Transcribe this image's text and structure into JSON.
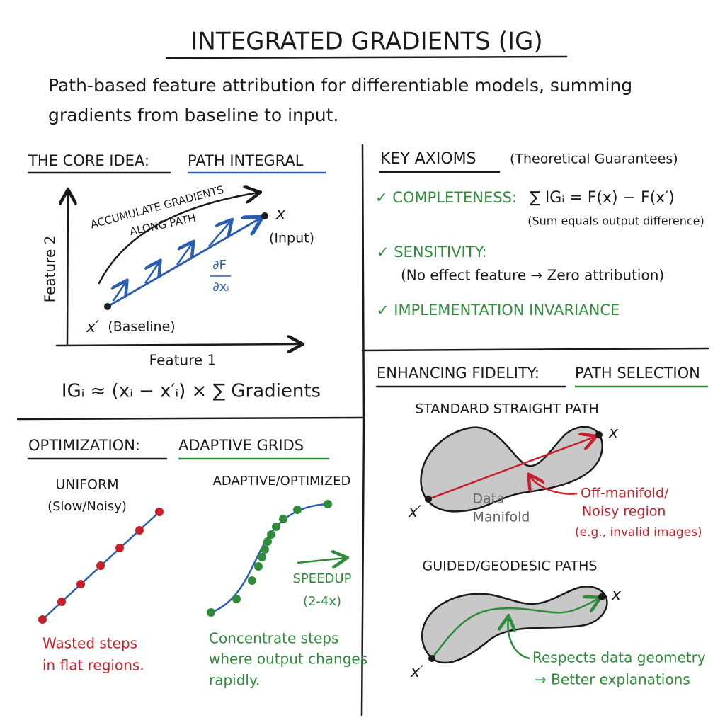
{
  "title": "INTEGRATED GRADIENTS (IG)",
  "subtitle_lines": [
    "Path-based feature attribution for differentiable models, summing",
    "gradients from baseline to input."
  ],
  "core_idea": {
    "heading": "THE CORE IDEA:",
    "heading_accent": "PATH INTEGRAL",
    "curve_label_lines": [
      "ACCUMULATE GRADIENTS",
      "ALONG PATH"
    ],
    "input_symbol": "x",
    "input_label": "(Input)",
    "gradient_numerator": "∂F",
    "gradient_denominator": "∂xᵢ",
    "baseline_symbol": "x′",
    "baseline_label": "(Baseline)",
    "y_axis_label": "Feature 2",
    "x_axis_label": "Feature 1",
    "formula": "IGᵢ ≈ (xᵢ − x′ᵢ) × ∑ Gradients"
  },
  "key_axioms": {
    "heading": "KEY AXIOMS",
    "heading_note": "(Theoretical Guarantees)",
    "items": [
      {
        "label": "✓ COMPLETENESS:",
        "formula": "∑ IGᵢ = F(x) − F(x′)",
        "note": "(Sum equals output difference)"
      },
      {
        "label": "✓ SENSITIVITY:",
        "note": "(No effect feature → Zero attribution)"
      },
      {
        "label": "✓ IMPLEMENTATION INVARIANCE"
      }
    ]
  },
  "optimization": {
    "heading": "OPTIMIZATION:",
    "heading_accent": "ADAPTIVE GRIDS",
    "uniform": {
      "label": "UNIFORM",
      "note": "(Slow/Noisy)",
      "caption_lines": [
        "Wasted steps",
        "in flat regions."
      ]
    },
    "adaptive": {
      "label": "ADAPTIVE/OPTIMIZED",
      "speedup_label": "SPEEDUP",
      "speedup_value": "(2-4x)",
      "caption_lines": [
        "Concentrate steps",
        "where output changes",
        "rapidly."
      ]
    }
  },
  "fidelity": {
    "heading": "ENHANCING FIDELITY:",
    "heading_accent": "PATH SELECTION",
    "standard": {
      "label": "STANDARD STRAIGHT PATH",
      "input_symbol": "x",
      "baseline_symbol": "x′",
      "manifold_lines": [
        "Data",
        "Manifold"
      ],
      "warning_lines": [
        "Off-manifold/",
        "Noisy region",
        "(e.g., invalid images)"
      ]
    },
    "guided": {
      "label": "GUIDED/GEODESIC PATHS",
      "input_symbol": "x",
      "baseline_symbol": "x′",
      "caption_lines": [
        "Respects data geometry",
        "→ Better explanations"
      ]
    }
  }
}
